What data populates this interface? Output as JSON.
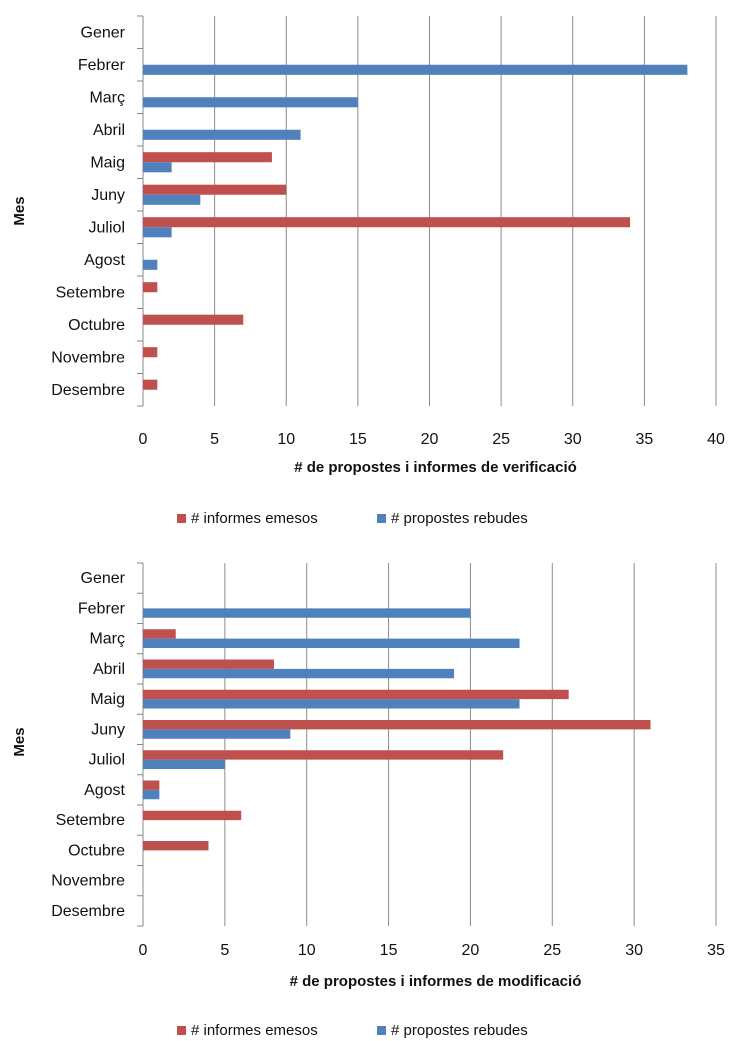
{
  "chart_data": [
    {
      "type": "bar",
      "orientation": "horizontal",
      "categories": [
        "Gener",
        "Febrer",
        "Març",
        "Abril",
        "Maig",
        "Juny",
        "Juliol",
        "Agost",
        "Setembre",
        "Octubre",
        "Novembre",
        "Desembre"
      ],
      "series": [
        {
          "name": "# informes emesos",
          "color": "#C0504D",
          "values": [
            0,
            0,
            0,
            0,
            9,
            10,
            34,
            0,
            1,
            7,
            1,
            1
          ]
        },
        {
          "name": "# propostes rebudes",
          "color": "#4F81BD",
          "values": [
            0,
            38,
            15,
            11,
            2,
            4,
            2,
            1,
            0,
            0,
            0,
            0
          ]
        }
      ],
      "xlabel": "# de propostes i informes de verificació",
      "ylabel": "Mes",
      "xlim": [
        0,
        40
      ],
      "xticks": [
        0,
        5,
        10,
        15,
        20,
        25,
        30,
        35,
        40
      ],
      "grid": true,
      "legend": "bottom"
    },
    {
      "type": "bar",
      "orientation": "horizontal",
      "categories": [
        "Gener",
        "Febrer",
        "Març",
        "Abril",
        "Maig",
        "Juny",
        "Juliol",
        "Agost",
        "Setembre",
        "Octubre",
        "Novembre",
        "Desembre"
      ],
      "series": [
        {
          "name": "# informes emesos",
          "color": "#C0504D",
          "values": [
            0,
            0,
            2,
            8,
            26,
            31,
            22,
            1,
            6,
            4,
            0,
            0
          ]
        },
        {
          "name": "# propostes rebudes",
          "color": "#4F81BD",
          "values": [
            0,
            20,
            23,
            19,
            23,
            9,
            5,
            1,
            0,
            0,
            0,
            0
          ]
        }
      ],
      "xlabel": "# de propostes i informes de modificació",
      "ylabel": "Mes",
      "xlim": [
        0,
        35
      ],
      "xticks": [
        0,
        5,
        10,
        15,
        20,
        25,
        30,
        35
      ],
      "grid": true,
      "legend": "bottom"
    }
  ]
}
